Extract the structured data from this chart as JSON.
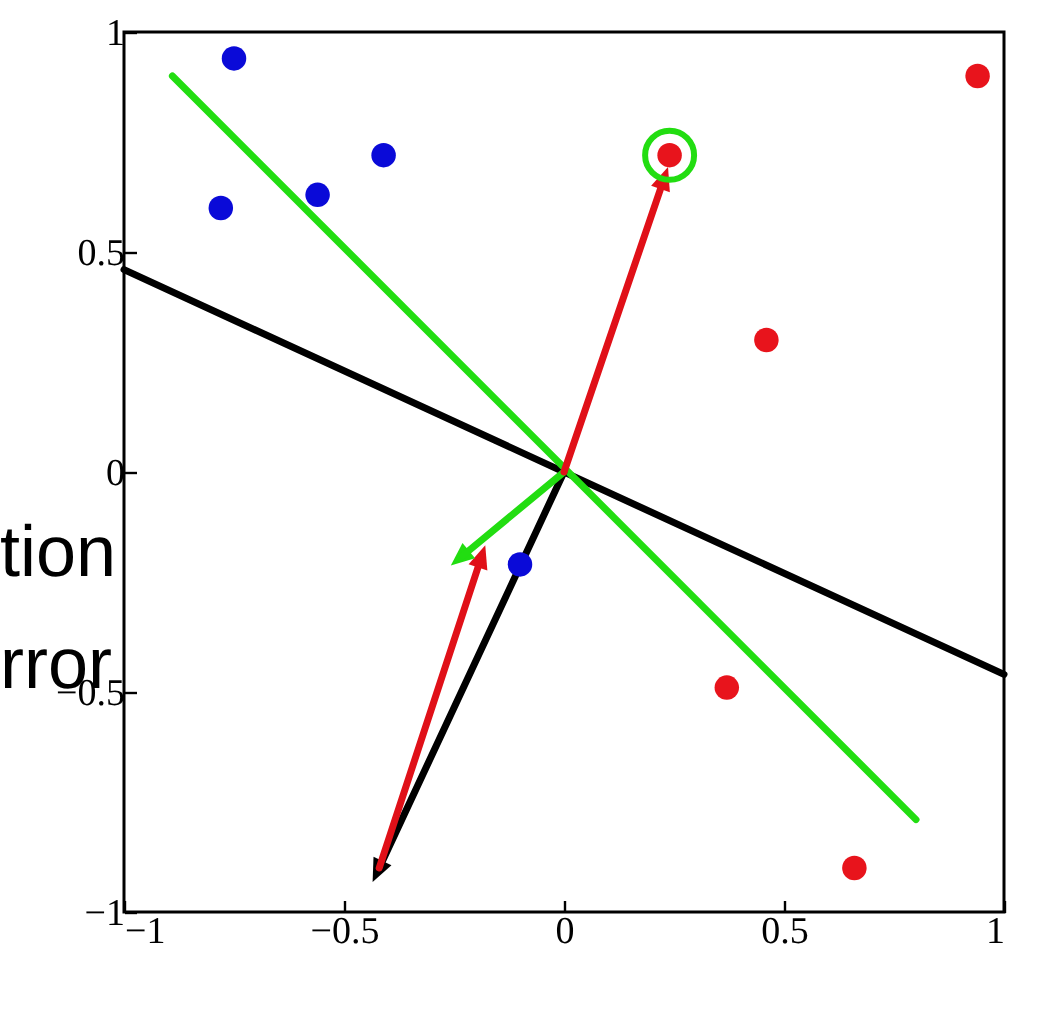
{
  "chart_data": {
    "type": "scatter",
    "xlim": [
      -1,
      1
    ],
    "ylim": [
      -1,
      1
    ],
    "xticks": [
      -1,
      -0.5,
      0,
      0.5,
      1
    ],
    "yticks": [
      -1,
      -0.5,
      0,
      0.5,
      1
    ],
    "series": [
      {
        "type": "line",
        "color": "#000000",
        "x": [
          -1,
          1
        ],
        "values": [
          0.46,
          -0.46
        ],
        "marker": "none"
      },
      {
        "type": "line",
        "color": "#22dd11",
        "x": [
          -0.89,
          0.8
        ],
        "values": [
          0.9,
          -0.79
        ],
        "marker": "none"
      },
      {
        "type": "line",
        "color": "#000000",
        "x": [
          0,
          -0.42
        ],
        "values": [
          0,
          -0.9
        ],
        "marker": "triangle"
      },
      {
        "type": "line",
        "color": "#e01018",
        "x": [
          -0.42,
          -0.19
        ],
        "values": [
          -0.9,
          -0.2
        ],
        "marker": "triangle"
      },
      {
        "type": "line",
        "color": "#22dd11",
        "x": [
          0,
          -0.23
        ],
        "values": [
          0,
          -0.19
        ],
        "marker": "triangle"
      },
      {
        "type": "line",
        "color": "#e01018",
        "x": [
          0,
          0.225
        ],
        "values": [
          0,
          0.66
        ],
        "marker": "triangle"
      },
      {
        "type": "scatter",
        "color": "#0a0ad8",
        "x": [
          -0.75,
          -0.78,
          -0.56,
          -0.41,
          -0.1
        ],
        "values": [
          0.94,
          0.6,
          0.63,
          0.72,
          -0.21
        ],
        "marker": "circle"
      },
      {
        "type": "scatter",
        "color": "#e8141c",
        "x": [
          0.24,
          0.94,
          0.46,
          0.37,
          0.66
        ],
        "values": [
          0.72,
          0.9,
          0.3,
          -0.49,
          -0.9
        ],
        "marker": "circle"
      },
      {
        "type": "scatter",
        "color": "#22dd11",
        "x": [
          0.24
        ],
        "values": [
          0.72
        ]
      }
    ],
    "annotations": [
      "tion",
      "rror"
    ]
  }
}
